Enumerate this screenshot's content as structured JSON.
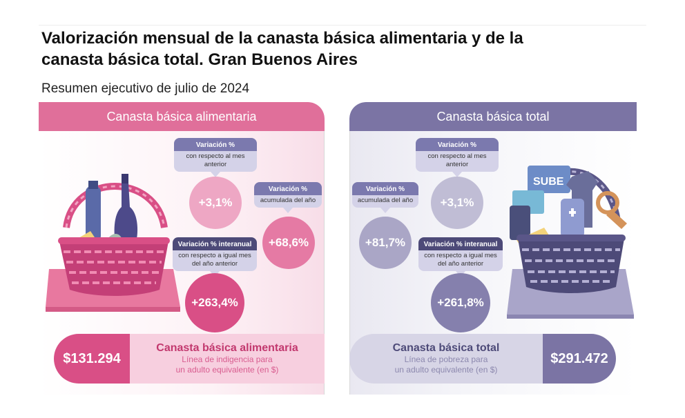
{
  "header": {
    "title": "Valorización mensual de la canasta básica alimentaria y de la canasta básica total. Gran Buenos Aires",
    "subtitle": "Resumen ejecutivo de julio de 2024"
  },
  "cba": {
    "heading": "Canasta básica alimentaria",
    "monthly": {
      "label": "Variación %",
      "desc": "con respecto al mes anterior",
      "value": "+3,1%"
    },
    "cumulative": {
      "label": "Variación %",
      "desc": "acumulada del año",
      "value": "+68,6%"
    },
    "interannual": {
      "label": "Variación % interanual",
      "desc": "con respecto a igual mes del año anterior",
      "value": "+263,4%"
    },
    "amount": "$131.294",
    "footer_title": "Canasta básica alimentaria",
    "footer_desc1": "Línea de indigencia para",
    "footer_desc2": "un adulto equivalente (en $)"
  },
  "cbt": {
    "heading": "Canasta básica total",
    "monthly": {
      "label": "Variación %",
      "desc": "con respecto al mes anterior",
      "value": "+3,1%"
    },
    "cumulative": {
      "label": "Variación %",
      "desc": "acumulada del año",
      "value": "+81,7%"
    },
    "interannual": {
      "label": "Variación % interanual",
      "desc": "con respecto a igual mes del año anterior",
      "value": "+261,8%"
    },
    "amount": "$291.472",
    "footer_title": "Canasta básica total",
    "footer_desc1": "Línea de pobreza para",
    "footer_desc2": "un adulto equivalente (en $)",
    "sube_text": "SUBE"
  },
  "colors": {
    "pink_header": "#e06f9a",
    "pink_circle_light": "#eea7c4",
    "pink_circle_mid": "#e57aa4",
    "pink_circle_dark": "#d94f86",
    "purple_header": "#7b74a4",
    "purple_circle_light": "#c0bdd5",
    "purple_circle_mid": "#aaa6c6",
    "purple_circle_dark": "#8580ad"
  },
  "icons": [
    "food-basket-illustration",
    "goods-basket-illustration"
  ]
}
